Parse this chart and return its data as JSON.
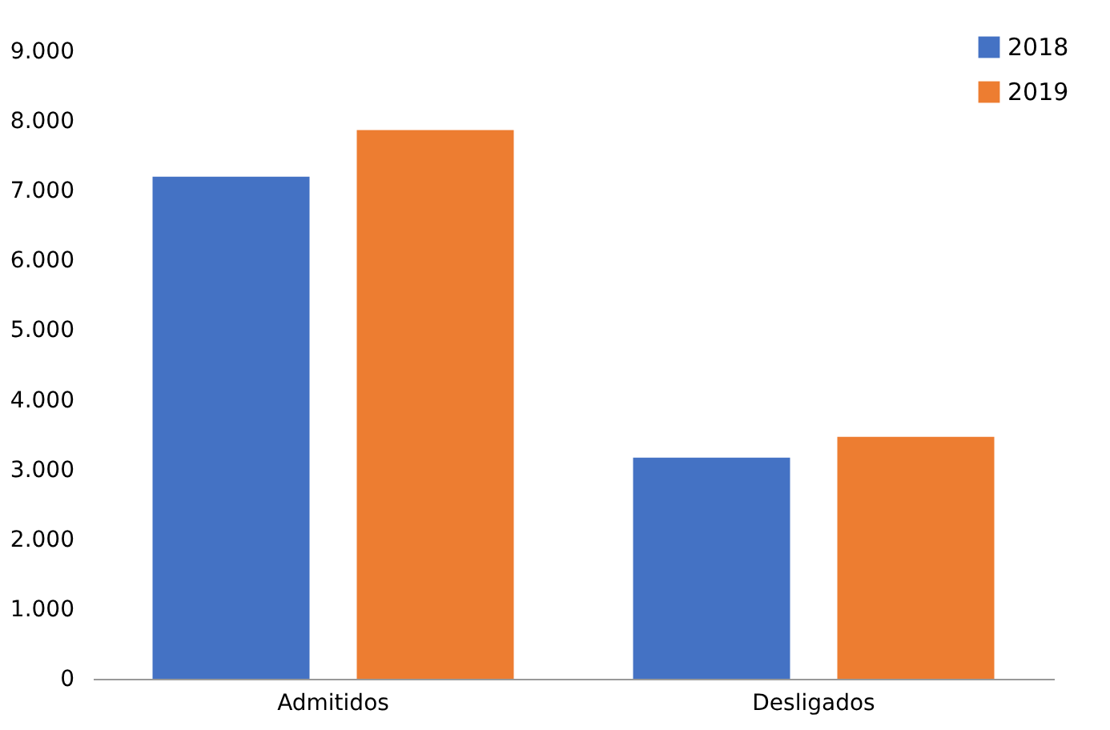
{
  "chart_data": {
    "type": "bar",
    "categories": [
      "Admitidos",
      "Desligados"
    ],
    "series": [
      {
        "name": "2018",
        "color": "#4472c4",
        "values": [
          7200,
          3170
        ]
      },
      {
        "name": "2019",
        "color": "#ed7d31",
        "values": [
          7870,
          3470
        ]
      }
    ],
    "ylim": [
      0,
      9000
    ],
    "yticks": [
      {
        "value": 0,
        "label": "0"
      },
      {
        "value": 1000,
        "label": "1.000"
      },
      {
        "value": 2000,
        "label": "2.000"
      },
      {
        "value": 3000,
        "label": "3.000"
      },
      {
        "value": 4000,
        "label": "4.000"
      },
      {
        "value": 5000,
        "label": "5.000"
      },
      {
        "value": 6000,
        "label": "6.000"
      },
      {
        "value": 7000,
        "label": "7.000"
      },
      {
        "value": 8000,
        "label": "8.000"
      },
      {
        "value": 9000,
        "label": "9.000"
      }
    ],
    "grid": false,
    "legend": "top right"
  }
}
